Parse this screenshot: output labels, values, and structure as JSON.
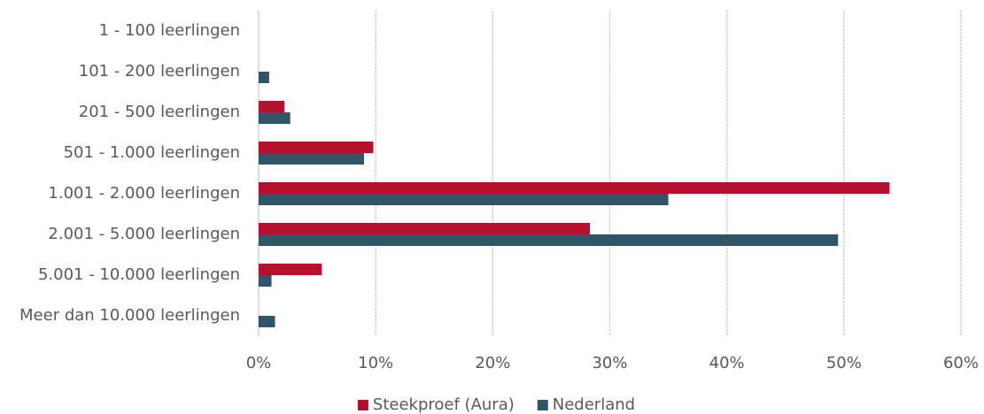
{
  "chart_data": {
    "type": "hbar",
    "categories": [
      "1 - 100 leerlingen",
      "101 - 200 leerlingen",
      "201 - 500 leerlingen",
      "501 - 1.000 leerlingen",
      "1.001 - 2.000 leerlingen",
      "2.001 - 5.000 leerlingen",
      "5.001 - 10.000 leerlingen",
      "Meer dan 10.000 leerlingen"
    ],
    "series": [
      {
        "name": "Steekproef (Aura)",
        "color": "#b5112f",
        "values": [
          0,
          0,
          2.2,
          9.8,
          53.9,
          28.3,
          5.4,
          0
        ]
      },
      {
        "name": "Nederland",
        "color": "#2f5566",
        "values": [
          0,
          0.9,
          2.7,
          9.0,
          35.0,
          49.5,
          1.1,
          1.4
        ]
      }
    ],
    "xlim": [
      0,
      60
    ],
    "xticks": [
      {
        "value": 0,
        "label": "0%"
      },
      {
        "value": 10,
        "label": "10%"
      },
      {
        "value": 20,
        "label": "20%"
      },
      {
        "value": 30,
        "label": "30%"
      },
      {
        "value": 40,
        "label": "40%"
      },
      {
        "value": 50,
        "label": "50%"
      },
      {
        "value": 60,
        "label": "60%"
      }
    ],
    "grid": true,
    "legend": "bottom"
  }
}
